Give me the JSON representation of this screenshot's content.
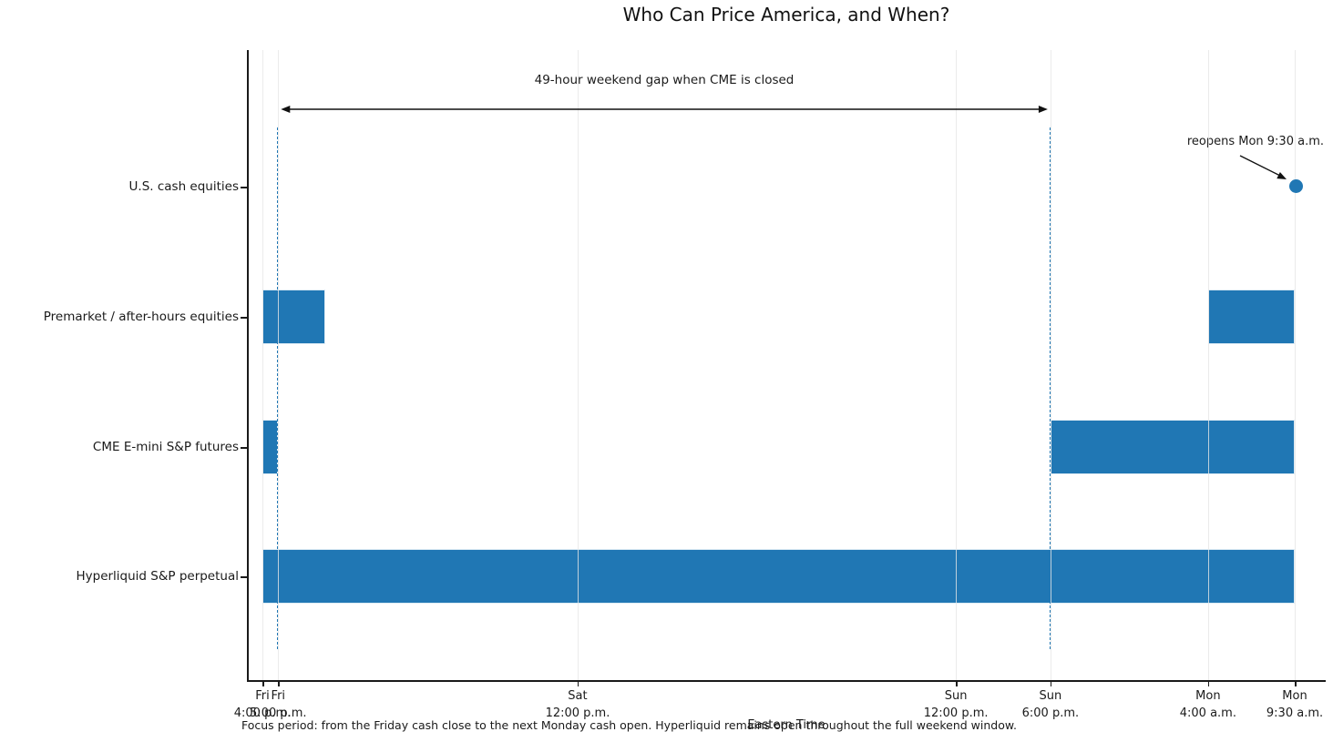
{
  "title": "Who Can Price America, and When?",
  "chart_data": {
    "type": "gantt",
    "title": "Who Can Price America, and When?",
    "xlabel": "Eastern Time",
    "caption": "Focus period: from the Friday cash close to the next Monday cash open. Hyperliquid remains open throughout the full weekend window.",
    "x_unit_hours_from": "Friday 4:00 p.m. ET",
    "xlim_hours": [
      -1,
      67.5
    ],
    "grid": true,
    "x_ticks": [
      {
        "t": 0,
        "label": "Fri\n4:00 p.m."
      },
      {
        "t": 1,
        "label": "Fri\n5:00 p.m."
      },
      {
        "t": 20,
        "label": "Sat\n12:00 p.m."
      },
      {
        "t": 44,
        "label": "Sun\n12:00 p.m."
      },
      {
        "t": 50,
        "label": "Sun\n6:00 p.m."
      },
      {
        "t": 60,
        "label": "Mon\n4:00 a.m."
      },
      {
        "t": 65.5,
        "label": "Mon\n9:30 a.m."
      }
    ],
    "rows": [
      {
        "label": "U.S. cash equities",
        "bars": [],
        "marker_t": 65.5
      },
      {
        "label": "Premarket / after-hours equities",
        "bars": [
          [
            0,
            4
          ],
          [
            60,
            65.5
          ]
        ]
      },
      {
        "label": "CME E-mini S&P futures",
        "bars": [
          [
            0,
            1
          ],
          [
            50,
            65.5
          ]
        ]
      },
      {
        "label": "Hyperliquid S&P perpetual",
        "bars": [
          [
            0,
            65.5
          ]
        ]
      }
    ],
    "dashed_guides_t": [
      1,
      50
    ],
    "annotations": {
      "gap_text": "49-hour weekend gap when CME is closed",
      "gap_from_t": 1,
      "gap_to_t": 50,
      "reopen_text": "reopens Mon 9:30 a.m.",
      "reopen_t": 65.5,
      "reopen_row": "U.S. cash equities"
    },
    "colors": {
      "bar": "#2077b4",
      "dashed_guide": "#2077b4",
      "marker": "#2077b4",
      "grid": "#e6e6e6",
      "spine": "#1a1a1a",
      "text": "#1a1a1a"
    }
  }
}
